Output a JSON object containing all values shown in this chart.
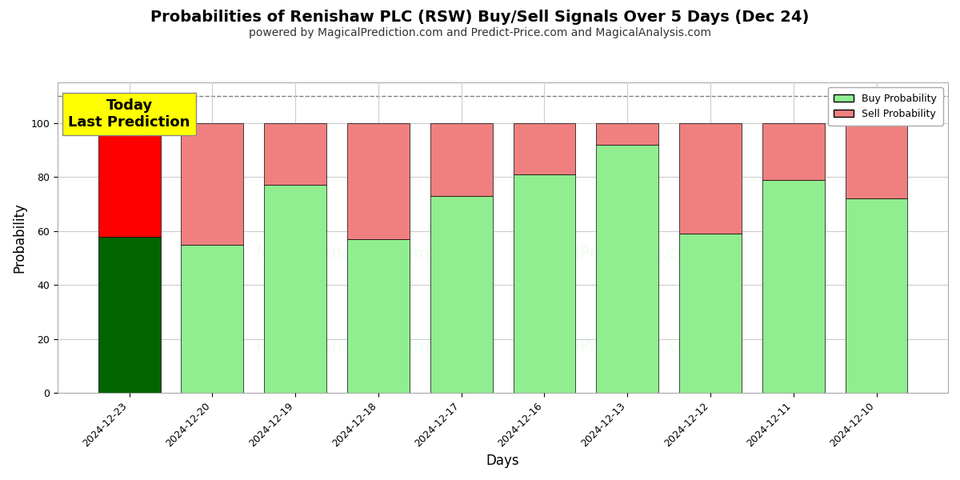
{
  "title": "Probabilities of Renishaw PLC (RSW) Buy/Sell Signals Over 5 Days (Dec 24)",
  "subtitle": "powered by MagicalPrediction.com and Predict-Price.com and MagicalAnalysis.com",
  "xlabel": "Days",
  "ylabel": "Probability",
  "categories": [
    "2024-12-23",
    "2024-12-20",
    "2024-12-19",
    "2024-12-18",
    "2024-12-17",
    "2024-12-16",
    "2024-12-13",
    "2024-12-12",
    "2024-12-11",
    "2024-12-10"
  ],
  "buy_values": [
    58,
    55,
    77,
    57,
    73,
    81,
    92,
    59,
    79,
    72
  ],
  "sell_values": [
    42,
    45,
    23,
    43,
    27,
    19,
    8,
    41,
    21,
    28
  ],
  "buy_color_today": "#006400",
  "sell_color_today": "#ff0000",
  "buy_color_normal": "#90EE90",
  "sell_color_normal": "#f08080",
  "bar_edge_color": "#000000",
  "bar_edge_width": 0.5,
  "today_annotation_text": "Today\nLast Prediction",
  "today_annotation_bg": "#ffff00",
  "today_annotation_fontsize": 13,
  "legend_buy": "Buy Probability",
  "legend_sell": "Sell Probability",
  "ylim": [
    0,
    115
  ],
  "dashed_line_y": 110,
  "title_fontsize": 14,
  "subtitle_fontsize": 10,
  "axis_label_fontsize": 12,
  "tick_fontsize": 9,
  "grid_color": "#cccccc",
  "background_color": "#ffffff",
  "watermark1_text": "MagicalAnalysis.com",
  "watermark2_text": "MagicalPrediction.com",
  "watermark_alpha": 0.13,
  "bar_width": 0.75
}
